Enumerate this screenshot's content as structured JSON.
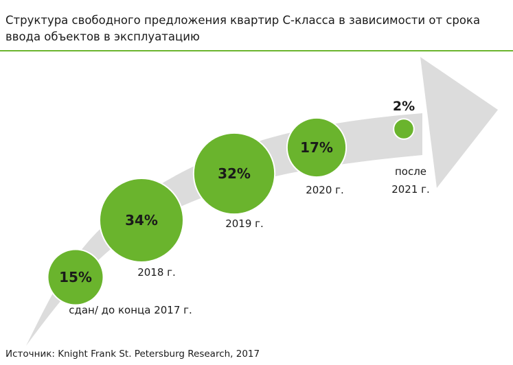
{
  "header": {
    "title_line1": "Структура свободного предложения квартир С-класса в зависимости от срока",
    "title_line2": "ввода объектов в эксплуатацию"
  },
  "footer": {
    "source": "Источник: Knight Frank St. Petersburg Research, 2017"
  },
  "colors": {
    "bubble": "#6ab42d",
    "arrow": "#dcdcdc",
    "rule": "#6ab42d"
  },
  "chart_data": {
    "type": "bubble",
    "unit": "%",
    "categories": [
      {
        "label": "сдан/ до конца 2017 г.",
        "lines": [
          "сдан/ до конца 2017 г."
        ],
        "value": 15
      },
      {
        "label": "2018 г.",
        "lines": [
          "2018 г."
        ],
        "value": 34
      },
      {
        "label": "2019 г.",
        "lines": [
          "2019 г."
        ],
        "value": 32
      },
      {
        "label": "2020 г.",
        "lines": [
          "2020 г."
        ],
        "value": 17
      },
      {
        "label": "после 2021 г.",
        "lines": [
          "после",
          "2021 г."
        ],
        "value": 2
      }
    ]
  }
}
